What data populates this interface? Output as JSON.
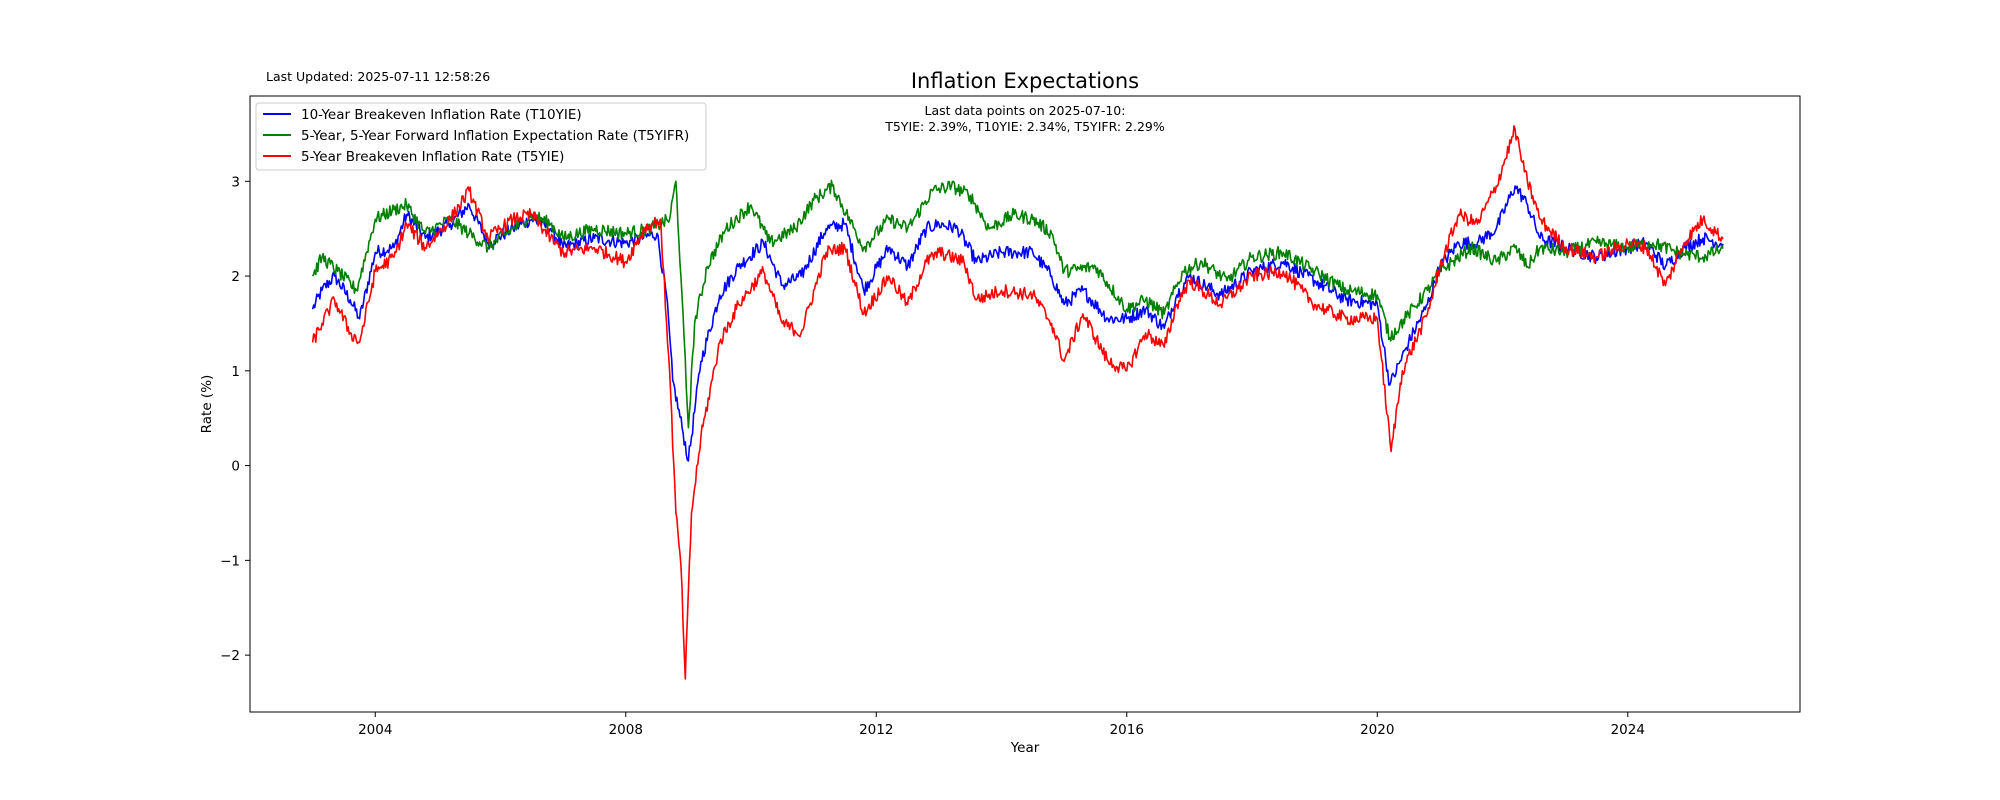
{
  "header": {
    "last_updated": "Last Updated: 2025-07-11 12:58:26"
  },
  "annotation": {
    "line1": "Last data points on 2025-07-10:",
    "line2": "T5YIE: 2.39%, T10YIE: 2.34%, T5YIFR: 2.29%"
  },
  "chart_data": {
    "type": "line",
    "title": "Inflation Expectations",
    "xlabel": "Year",
    "ylabel": "Rate (%)",
    "xlim": [
      2002.0,
      2026.75
    ],
    "ylim": [
      -2.6,
      3.9
    ],
    "xticks": [
      2004,
      2008,
      2012,
      2016,
      2020,
      2024
    ],
    "xtick_labels": [
      "2004",
      "2008",
      "2012",
      "2016",
      "2020",
      "2024"
    ],
    "yticks": [
      -2,
      -1,
      0,
      1,
      2,
      3
    ],
    "ytick_labels": [
      "−2",
      "−1",
      "0",
      "1",
      "2",
      "3"
    ],
    "grid": false,
    "legend_position": "top-left",
    "series": [
      {
        "name": "10-Year Breakeven Inflation Rate (T10YIE)",
        "color": "#0000ff",
        "points": [
          [
            2003.0,
            1.65
          ],
          [
            2003.15,
            1.85
          ],
          [
            2003.35,
            2.0
          ],
          [
            2003.6,
            1.75
          ],
          [
            2003.75,
            1.55
          ],
          [
            2004.0,
            2.25
          ],
          [
            2004.3,
            2.3
          ],
          [
            2004.5,
            2.65
          ],
          [
            2004.8,
            2.4
          ],
          [
            2005.2,
            2.55
          ],
          [
            2005.5,
            2.75
          ],
          [
            2005.8,
            2.35
          ],
          [
            2006.2,
            2.5
          ],
          [
            2006.5,
            2.6
          ],
          [
            2006.8,
            2.5
          ],
          [
            2007.0,
            2.3
          ],
          [
            2007.5,
            2.4
          ],
          [
            2008.0,
            2.35
          ],
          [
            2008.5,
            2.45
          ],
          [
            2008.65,
            1.8
          ],
          [
            2008.75,
            0.9
          ],
          [
            2008.9,
            0.4
          ],
          [
            2009.0,
            0.05
          ],
          [
            2009.2,
            1.1
          ],
          [
            2009.5,
            1.8
          ],
          [
            2009.8,
            2.1
          ],
          [
            2010.2,
            2.35
          ],
          [
            2010.5,
            1.9
          ],
          [
            2010.8,
            2.0
          ],
          [
            2011.2,
            2.5
          ],
          [
            2011.5,
            2.55
          ],
          [
            2011.8,
            1.85
          ],
          [
            2012.2,
            2.3
          ],
          [
            2012.5,
            2.1
          ],
          [
            2012.8,
            2.5
          ],
          [
            2013.0,
            2.55
          ],
          [
            2013.3,
            2.5
          ],
          [
            2013.6,
            2.15
          ],
          [
            2014.0,
            2.25
          ],
          [
            2014.5,
            2.25
          ],
          [
            2014.8,
            2.0
          ],
          [
            2015.0,
            1.7
          ],
          [
            2015.3,
            1.85
          ],
          [
            2015.7,
            1.55
          ],
          [
            2016.0,
            1.55
          ],
          [
            2016.3,
            1.65
          ],
          [
            2016.6,
            1.45
          ],
          [
            2016.8,
            1.8
          ],
          [
            2017.0,
            2.0
          ],
          [
            2017.5,
            1.8
          ],
          [
            2018.0,
            2.05
          ],
          [
            2018.5,
            2.15
          ],
          [
            2019.0,
            1.95
          ],
          [
            2019.5,
            1.75
          ],
          [
            2020.0,
            1.7
          ],
          [
            2020.2,
            0.85
          ],
          [
            2020.5,
            1.3
          ],
          [
            2020.8,
            1.7
          ],
          [
            2021.0,
            2.1
          ],
          [
            2021.3,
            2.35
          ],
          [
            2021.6,
            2.35
          ],
          [
            2021.9,
            2.5
          ],
          [
            2022.2,
            2.95
          ],
          [
            2022.4,
            2.75
          ],
          [
            2022.6,
            2.4
          ],
          [
            2023.0,
            2.3
          ],
          [
            2023.5,
            2.2
          ],
          [
            2024.0,
            2.3
          ],
          [
            2024.3,
            2.35
          ],
          [
            2024.6,
            2.1
          ],
          [
            2024.9,
            2.3
          ],
          [
            2025.2,
            2.4
          ],
          [
            2025.52,
            2.34
          ]
        ]
      },
      {
        "name": "5-Year, 5-Year Forward Inflation Expectation Rate (T5YIFR)",
        "color": "#008000",
        "points": [
          [
            2003.0,
            2.0
          ],
          [
            2003.15,
            2.2
          ],
          [
            2003.4,
            2.05
          ],
          [
            2003.7,
            1.85
          ],
          [
            2004.0,
            2.6
          ],
          [
            2004.3,
            2.7
          ],
          [
            2004.5,
            2.75
          ],
          [
            2004.8,
            2.45
          ],
          [
            2005.2,
            2.6
          ],
          [
            2005.5,
            2.45
          ],
          [
            2005.8,
            2.3
          ],
          [
            2006.2,
            2.5
          ],
          [
            2006.5,
            2.65
          ],
          [
            2006.8,
            2.55
          ],
          [
            2007.0,
            2.4
          ],
          [
            2007.5,
            2.5
          ],
          [
            2008.0,
            2.45
          ],
          [
            2008.4,
            2.5
          ],
          [
            2008.7,
            2.6
          ],
          [
            2008.8,
            3.0
          ],
          [
            2008.88,
            2.0
          ],
          [
            2009.0,
            0.4
          ],
          [
            2009.1,
            1.5
          ],
          [
            2009.3,
            2.1
          ],
          [
            2009.6,
            2.5
          ],
          [
            2010.0,
            2.75
          ],
          [
            2010.3,
            2.35
          ],
          [
            2010.7,
            2.5
          ],
          [
            2011.0,
            2.8
          ],
          [
            2011.3,
            2.95
          ],
          [
            2011.8,
            2.3
          ],
          [
            2012.2,
            2.6
          ],
          [
            2012.5,
            2.5
          ],
          [
            2012.9,
            2.9
          ],
          [
            2013.2,
            2.95
          ],
          [
            2013.5,
            2.85
          ],
          [
            2013.8,
            2.5
          ],
          [
            2014.2,
            2.65
          ],
          [
            2014.5,
            2.6
          ],
          [
            2014.8,
            2.45
          ],
          [
            2015.0,
            2.05
          ],
          [
            2015.5,
            2.1
          ],
          [
            2016.0,
            1.65
          ],
          [
            2016.3,
            1.75
          ],
          [
            2016.6,
            1.6
          ],
          [
            2016.9,
            2.05
          ],
          [
            2017.2,
            2.15
          ],
          [
            2017.6,
            1.95
          ],
          [
            2018.0,
            2.2
          ],
          [
            2018.5,
            2.25
          ],
          [
            2019.0,
            2.05
          ],
          [
            2019.5,
            1.85
          ],
          [
            2020.0,
            1.8
          ],
          [
            2020.2,
            1.35
          ],
          [
            2020.5,
            1.6
          ],
          [
            2020.8,
            1.85
          ],
          [
            2021.0,
            2.05
          ],
          [
            2021.5,
            2.3
          ],
          [
            2021.9,
            2.15
          ],
          [
            2022.2,
            2.3
          ],
          [
            2022.4,
            2.1
          ],
          [
            2022.6,
            2.3
          ],
          [
            2023.0,
            2.25
          ],
          [
            2023.5,
            2.35
          ],
          [
            2024.0,
            2.3
          ],
          [
            2024.4,
            2.35
          ],
          [
            2024.8,
            2.25
          ],
          [
            2025.2,
            2.2
          ],
          [
            2025.52,
            2.29
          ]
        ]
      },
      {
        "name": "5-Year Breakeven Inflation Rate (T5YIE)",
        "color": "#ff0000",
        "points": [
          [
            2003.0,
            1.3
          ],
          [
            2003.15,
            1.5
          ],
          [
            2003.35,
            1.75
          ],
          [
            2003.6,
            1.4
          ],
          [
            2003.75,
            1.3
          ],
          [
            2004.0,
            2.05
          ],
          [
            2004.3,
            2.2
          ],
          [
            2004.5,
            2.55
          ],
          [
            2004.8,
            2.3
          ],
          [
            2005.2,
            2.6
          ],
          [
            2005.5,
            2.9
          ],
          [
            2005.8,
            2.4
          ],
          [
            2006.2,
            2.6
          ],
          [
            2006.5,
            2.65
          ],
          [
            2006.8,
            2.4
          ],
          [
            2007.0,
            2.25
          ],
          [
            2007.5,
            2.3
          ],
          [
            2008.0,
            2.15
          ],
          [
            2008.3,
            2.5
          ],
          [
            2008.55,
            2.6
          ],
          [
            2008.7,
            1.0
          ],
          [
            2008.8,
            -0.5
          ],
          [
            2008.88,
            -1.05
          ],
          [
            2008.95,
            -2.25
          ],
          [
            2009.05,
            -0.5
          ],
          [
            2009.2,
            0.3
          ],
          [
            2009.5,
            1.3
          ],
          [
            2009.8,
            1.7
          ],
          [
            2010.2,
            2.05
          ],
          [
            2010.5,
            1.5
          ],
          [
            2010.8,
            1.4
          ],
          [
            2011.2,
            2.25
          ],
          [
            2011.5,
            2.3
          ],
          [
            2011.8,
            1.6
          ],
          [
            2012.2,
            2.0
          ],
          [
            2012.5,
            1.7
          ],
          [
            2012.8,
            2.15
          ],
          [
            2013.0,
            2.25
          ],
          [
            2013.4,
            2.15
          ],
          [
            2013.6,
            1.75
          ],
          [
            2014.0,
            1.85
          ],
          [
            2014.5,
            1.8
          ],
          [
            2014.8,
            1.5
          ],
          [
            2015.0,
            1.1
          ],
          [
            2015.3,
            1.6
          ],
          [
            2015.7,
            1.1
          ],
          [
            2016.0,
            1.0
          ],
          [
            2016.3,
            1.4
          ],
          [
            2016.6,
            1.25
          ],
          [
            2016.8,
            1.7
          ],
          [
            2017.0,
            1.95
          ],
          [
            2017.5,
            1.7
          ],
          [
            2018.0,
            2.0
          ],
          [
            2018.5,
            2.05
          ],
          [
            2019.0,
            1.7
          ],
          [
            2019.5,
            1.55
          ],
          [
            2020.0,
            1.55
          ],
          [
            2020.22,
            0.15
          ],
          [
            2020.4,
            1.0
          ],
          [
            2020.8,
            1.6
          ],
          [
            2021.0,
            2.1
          ],
          [
            2021.3,
            2.65
          ],
          [
            2021.6,
            2.55
          ],
          [
            2021.9,
            2.95
          ],
          [
            2022.2,
            3.55
          ],
          [
            2022.35,
            3.1
          ],
          [
            2022.6,
            2.6
          ],
          [
            2023.0,
            2.3
          ],
          [
            2023.5,
            2.2
          ],
          [
            2024.0,
            2.35
          ],
          [
            2024.3,
            2.3
          ],
          [
            2024.6,
            1.9
          ],
          [
            2024.9,
            2.35
          ],
          [
            2025.2,
            2.6
          ],
          [
            2025.52,
            2.39
          ]
        ]
      }
    ]
  }
}
